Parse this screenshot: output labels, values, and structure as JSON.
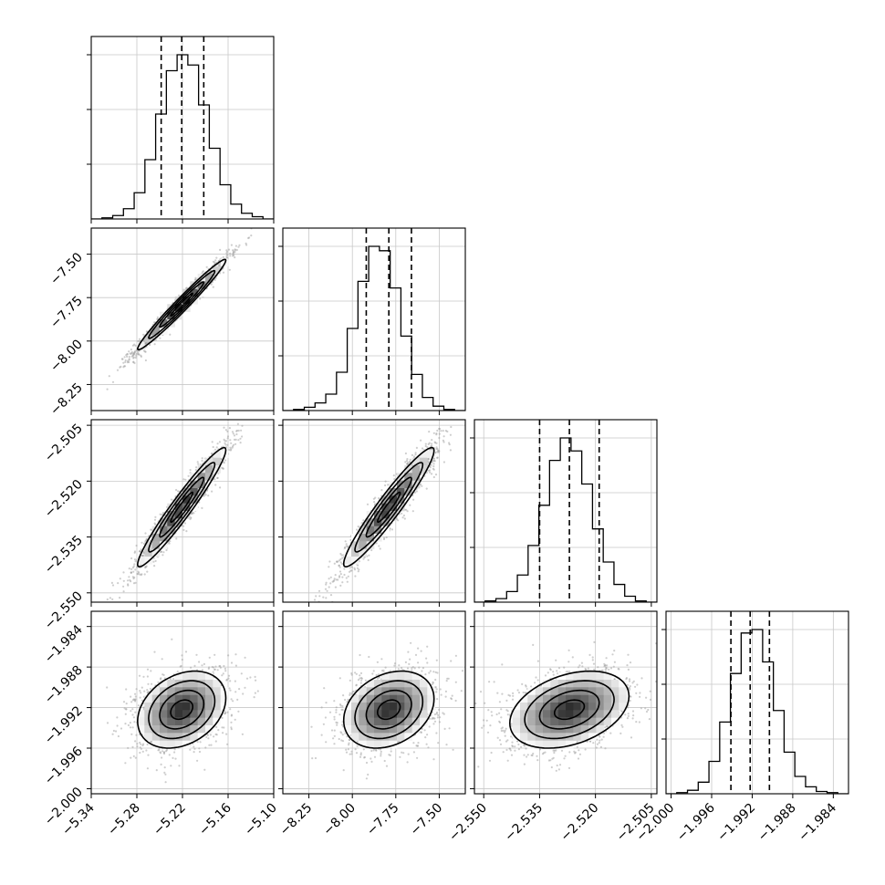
{
  "chart_data": {
    "type": "corner",
    "parameters": [
      {
        "range": [
          -5.34,
          -5.1
        ],
        "ticks": [
          -5.34,
          -5.28,
          -5.22,
          -5.16,
          -5.1
        ],
        "tick_labels": [
          "−5.34",
          "−5.28",
          "−5.22",
          "−5.16",
          "−5.10"
        ],
        "median": -5.221,
        "q16": -5.248,
        "q84": -5.192,
        "sigma": 0.029
      },
      {
        "range": [
          -8.4,
          -7.35
        ],
        "ticks": [
          -8.25,
          -8.0,
          -7.75,
          -7.5
        ],
        "tick_labels": [
          "−8.25",
          "−8.00",
          "−7.75",
          "−7.50"
        ],
        "median": -7.79,
        "q16": -7.92,
        "q84": -7.66,
        "sigma": 0.13
      },
      {
        "range": [
          -2.5525,
          -2.5035
        ],
        "ticks": [
          -2.55,
          -2.535,
          -2.52,
          -2.505
        ],
        "tick_labels": [
          "−2.550",
          "−2.535",
          "−2.520",
          "−2.505"
        ],
        "median": -2.527,
        "q16": -2.535,
        "q84": -2.519,
        "sigma": 0.008
      },
      {
        "range": [
          -2.0005,
          -1.9825
        ],
        "ticks": [
          -2.0,
          -1.996,
          -1.992,
          -1.988,
          -1.984
        ],
        "tick_labels": [
          "−2.000",
          "−1.996",
          "−1.992",
          "−1.988",
          "−1.984"
        ],
        "median": -1.9922,
        "q16": -1.9941,
        "q84": -1.9903,
        "sigma": 0.0019
      }
    ],
    "histograms": [
      [
        0,
        1,
        3,
        9,
        23,
        52,
        92,
        130,
        144,
        135,
        100,
        62,
        30,
        13,
        5,
        2,
        0
      ],
      [
        0,
        1,
        3,
        7,
        15,
        35,
        75,
        118,
        150,
        146,
        112,
        68,
        33,
        12,
        4,
        1,
        0
      ],
      [
        0,
        1,
        3,
        9,
        23,
        48,
        82,
        120,
        139,
        128,
        100,
        62,
        34,
        15,
        5,
        1,
        0
      ],
      [
        0,
        1,
        3,
        10,
        28,
        62,
        104,
        139,
        142,
        114,
        72,
        36,
        15,
        6,
        2,
        1,
        0
      ]
    ],
    "correlations": [
      [
        1,
        0.98,
        0.96,
        0.3
      ],
      [
        0.98,
        1,
        0.95,
        0.28
      ],
      [
        0.96,
        0.95,
        1,
        0.35
      ],
      [
        0.3,
        0.28,
        0.35,
        1
      ]
    ],
    "contour_levels": [
      0.5,
      1.0,
      1.5,
      2.0
    ],
    "grid": true,
    "colors": {
      "points": "#9e9e9e",
      "contour": "#000000",
      "hist": "#000000",
      "grid": "#c8c8c8"
    }
  }
}
